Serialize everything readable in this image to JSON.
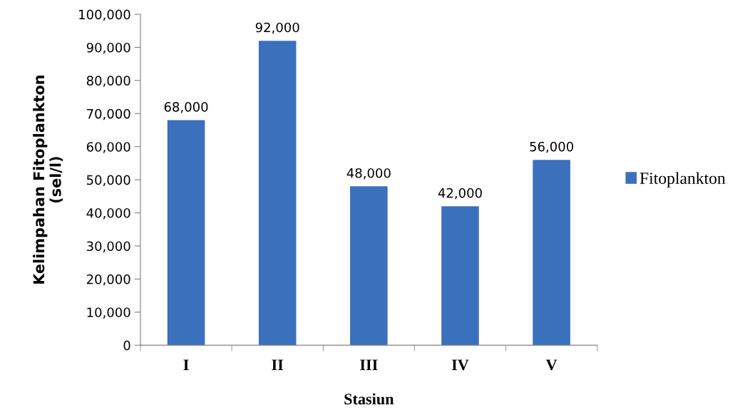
{
  "chart_data": {
    "type": "bar",
    "xlabel": "Stasiun",
    "ylabel": "Kelimpahan Fitoplankton\n(sel/l)",
    "categories": [
      "I",
      "II",
      "III",
      "IV",
      "V"
    ],
    "series": [
      {
        "name": "Fitoplankton",
        "color": "#3a70bc",
        "values": [
          68000,
          92000,
          48000,
          42000,
          56000
        ],
        "value_labels": [
          "68,000",
          "92,000",
          "48,000",
          "42,000",
          "56,000"
        ]
      }
    ],
    "ylim": [
      0,
      100000
    ],
    "yticks": [
      {
        "value": 0,
        "label": "0"
      },
      {
        "value": 10000,
        "label": "10,000"
      },
      {
        "value": 20000,
        "label": "20,000"
      },
      {
        "value": 30000,
        "label": "30,000"
      },
      {
        "value": 40000,
        "label": "40,000"
      },
      {
        "value": 50000,
        "label": "50,000"
      },
      {
        "value": 60000,
        "label": "60,000"
      },
      {
        "value": 70000,
        "label": "70,000"
      },
      {
        "value": 80000,
        "label": "80,000"
      },
      {
        "value": 90000,
        "label": "90,000"
      },
      {
        "value": 100000,
        "label": "100,000"
      }
    ],
    "grid": false,
    "legend": "right"
  }
}
